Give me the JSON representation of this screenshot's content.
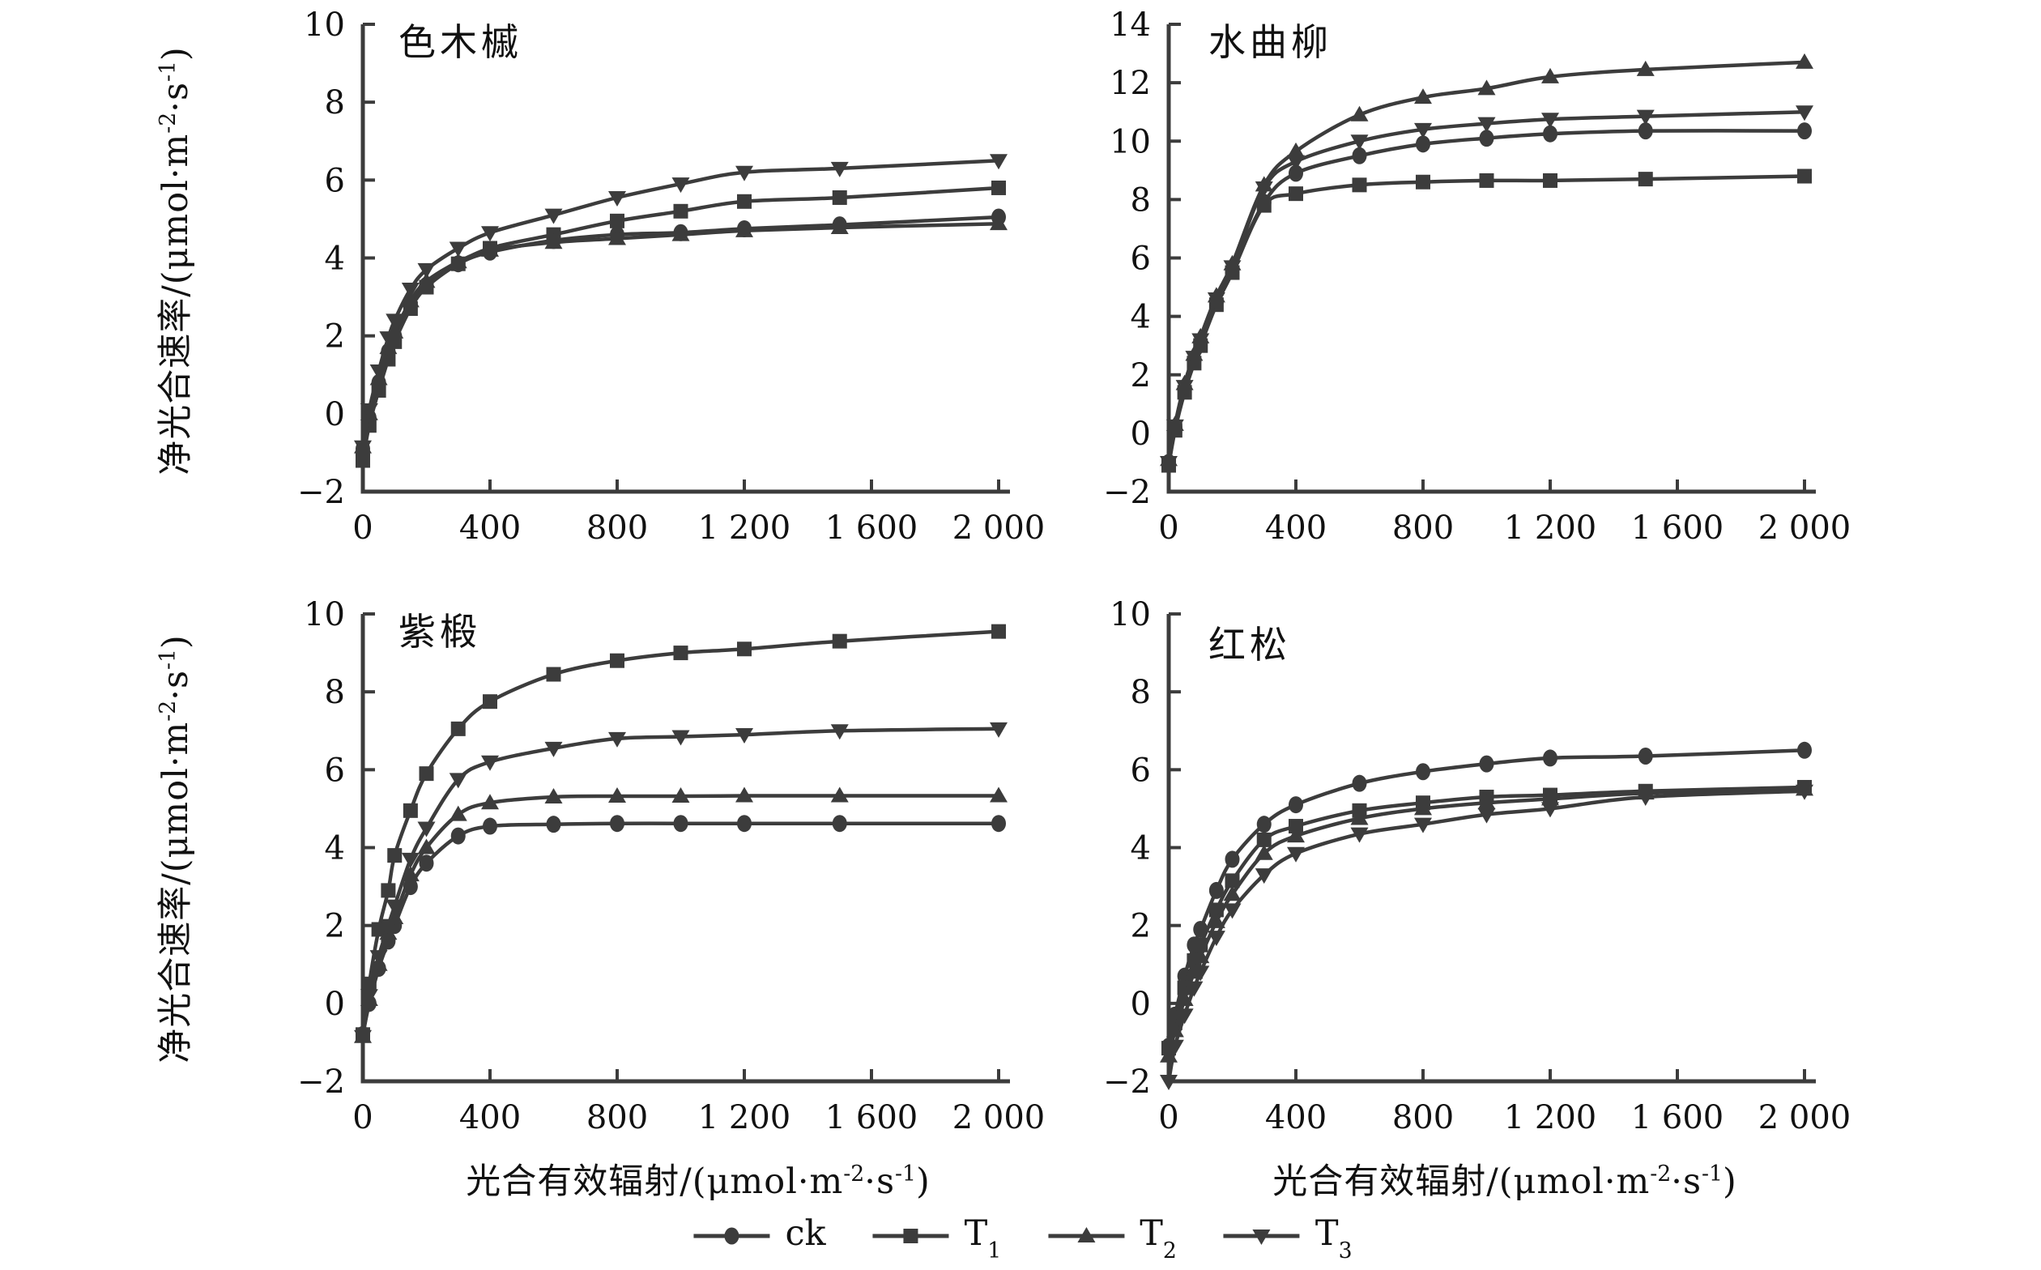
{
  "figure": {
    "background": "#ffffff",
    "line_color": "#3c3c3c",
    "text_color": "#111111"
  },
  "axes": {
    "x_label_pre": "光合有效辐射/(μmol·m",
    "x_label_sup1": "-2",
    "x_label_mid": "·s",
    "x_label_sup2": "-1",
    "x_label_post": ")",
    "y_label_pre": "净光合速率/(μmol·m",
    "y_label_sup1": "-2",
    "y_label_mid": "·s",
    "y_label_sup2": "-1",
    "y_label_post": ")"
  },
  "legend": {
    "items": [
      {
        "label": "ck",
        "sub": "",
        "marker": "circle"
      },
      {
        "label": "T",
        "sub": "1",
        "marker": "square"
      },
      {
        "label": "T",
        "sub": "2",
        "marker": "triangle-up"
      },
      {
        "label": "T",
        "sub": "3",
        "marker": "triangle-down"
      }
    ]
  },
  "chart_data": [
    {
      "type": "line",
      "title": "色木槭",
      "x": [
        0,
        20,
        50,
        80,
        100,
        150,
        200,
        300,
        400,
        600,
        800,
        1000,
        1200,
        1500,
        2000
      ],
      "xlim": [
        0,
        2000
      ],
      "xticks": [
        0,
        400,
        800,
        1200,
        1600,
        2000
      ],
      "xtick_labels": [
        "0",
        "400",
        "800",
        "1 200",
        "1 600",
        "2 000"
      ],
      "ylim": [
        -2,
        10
      ],
      "yticks": [
        -2,
        0,
        2,
        4,
        6,
        8,
        10
      ],
      "ytick_labels": [
        "−2",
        "0",
        "2",
        "4",
        "6",
        "8",
        "10"
      ],
      "series": [
        {
          "name": "ck",
          "marker": "circle",
          "values": [
            -0.9,
            -0.1,
            0.8,
            1.6,
            2.0,
            2.8,
            3.3,
            3.85,
            4.15,
            4.45,
            4.6,
            4.65,
            4.75,
            4.85,
            5.05
          ]
        },
        {
          "name": "T1",
          "marker": "square",
          "values": [
            -1.2,
            -0.3,
            0.6,
            1.4,
            1.85,
            2.7,
            3.25,
            3.85,
            4.25,
            4.6,
            4.95,
            5.2,
            5.45,
            5.55,
            5.8
          ]
        },
        {
          "name": "T2",
          "marker": "triangle-up",
          "values": [
            -0.85,
            0.0,
            0.9,
            1.7,
            2.1,
            2.9,
            3.4,
            3.9,
            4.2,
            4.4,
            4.5,
            4.6,
            4.7,
            4.78,
            4.88
          ]
        },
        {
          "name": "T3",
          "marker": "triangle-down",
          "values": [
            -0.85,
            0.1,
            1.1,
            1.95,
            2.4,
            3.2,
            3.7,
            4.25,
            4.65,
            5.1,
            5.55,
            5.9,
            6.2,
            6.3,
            6.5
          ]
        }
      ]
    },
    {
      "type": "line",
      "title": "水曲柳",
      "x": [
        0,
        20,
        50,
        80,
        100,
        150,
        200,
        300,
        400,
        600,
        800,
        1000,
        1200,
        1500,
        2000
      ],
      "xlim": [
        0,
        2000
      ],
      "xticks": [
        0,
        400,
        800,
        1200,
        1600,
        2000
      ],
      "xtick_labels": [
        "0",
        "400",
        "800",
        "1 200",
        "1 600",
        "2 000"
      ],
      "ylim": [
        -2,
        14
      ],
      "yticks": [
        -2,
        0,
        2,
        4,
        6,
        8,
        10,
        12,
        14
      ],
      "ytick_labels": [
        "−2",
        "0",
        "2",
        "4",
        "6",
        "8",
        "10",
        "12",
        "14"
      ],
      "series": [
        {
          "name": "ck",
          "marker": "circle",
          "values": [
            -1.0,
            0.2,
            1.5,
            2.5,
            3.1,
            4.5,
            5.6,
            7.9,
            8.9,
            9.5,
            9.9,
            10.1,
            10.25,
            10.35,
            10.35
          ]
        },
        {
          "name": "T1",
          "marker": "square",
          "values": [
            -1.1,
            0.1,
            1.4,
            2.4,
            3.0,
            4.4,
            5.5,
            7.8,
            8.2,
            8.5,
            8.6,
            8.65,
            8.65,
            8.7,
            8.8
          ]
        },
        {
          "name": "T2",
          "marker": "triangle-up",
          "values": [
            -0.9,
            0.3,
            1.7,
            2.7,
            3.3,
            4.7,
            5.8,
            8.5,
            9.65,
            10.9,
            11.5,
            11.8,
            12.2,
            12.45,
            12.7
          ]
        },
        {
          "name": "T3",
          "marker": "triangle-down",
          "values": [
            -1.0,
            0.25,
            1.6,
            2.6,
            3.2,
            4.6,
            5.7,
            8.4,
            9.3,
            10.0,
            10.4,
            10.6,
            10.75,
            10.85,
            11.0
          ]
        }
      ]
    },
    {
      "type": "line",
      "title": "紫椴",
      "x": [
        0,
        20,
        50,
        80,
        100,
        150,
        200,
        300,
        400,
        600,
        800,
        1000,
        1200,
        1500,
        2000
      ],
      "xlim": [
        0,
        2000
      ],
      "xticks": [
        0,
        400,
        800,
        1200,
        1600,
        2000
      ],
      "xtick_labels": [
        "0",
        "400",
        "800",
        "1 200",
        "1 600",
        "2 000"
      ],
      "ylim": [
        -2,
        10
      ],
      "yticks": [
        -2,
        0,
        2,
        4,
        6,
        8,
        10
      ],
      "ytick_labels": [
        "−2",
        "0",
        "2",
        "4",
        "6",
        "8",
        "10"
      ],
      "series": [
        {
          "name": "ck",
          "marker": "circle",
          "values": [
            -0.8,
            0.0,
            0.9,
            1.6,
            2.0,
            3.0,
            3.6,
            4.3,
            4.55,
            4.6,
            4.62,
            4.62,
            4.62,
            4.62,
            4.62
          ]
        },
        {
          "name": "T1",
          "marker": "square",
          "values": [
            -0.8,
            0.5,
            1.9,
            2.9,
            3.8,
            4.95,
            5.9,
            7.05,
            7.75,
            8.45,
            8.8,
            9.0,
            9.1,
            9.3,
            9.55
          ]
        },
        {
          "name": "T2",
          "marker": "triangle-up",
          "values": [
            -0.85,
            0.1,
            1.0,
            1.8,
            2.2,
            3.3,
            4.0,
            4.85,
            5.15,
            5.3,
            5.32,
            5.32,
            5.33,
            5.33,
            5.33
          ]
        },
        {
          "name": "T3",
          "marker": "triangle-down",
          "values": [
            -0.85,
            0.2,
            1.2,
            2.0,
            2.5,
            3.7,
            4.5,
            5.75,
            6.2,
            6.55,
            6.8,
            6.85,
            6.9,
            7.0,
            7.05
          ]
        }
      ]
    },
    {
      "type": "line",
      "title": "红松",
      "x": [
        0,
        20,
        50,
        80,
        100,
        150,
        200,
        300,
        400,
        600,
        800,
        1000,
        1200,
        1500,
        2000
      ],
      "xlim": [
        0,
        2000
      ],
      "xticks": [
        0,
        400,
        800,
        1200,
        1600,
        2000
      ],
      "xtick_labels": [
        "0",
        "400",
        "800",
        "1 200",
        "1 600",
        "2 000"
      ],
      "ylim": [
        -2,
        10
      ],
      "yticks": [
        -2,
        0,
        2,
        4,
        6,
        8,
        10
      ],
      "ytick_labels": [
        "−2",
        "0",
        "2",
        "4",
        "6",
        "8",
        "10"
      ],
      "series": [
        {
          "name": "ck",
          "marker": "circle",
          "values": [
            -1.1,
            -0.3,
            0.7,
            1.5,
            1.9,
            2.9,
            3.7,
            4.6,
            5.1,
            5.65,
            5.95,
            6.15,
            6.3,
            6.35,
            6.5
          ]
        },
        {
          "name": "T1",
          "marker": "square",
          "values": [
            -1.15,
            -0.5,
            0.4,
            1.1,
            1.5,
            2.4,
            3.15,
            4.2,
            4.55,
            4.95,
            5.15,
            5.3,
            5.35,
            5.45,
            5.55
          ]
        },
        {
          "name": "T2",
          "marker": "triangle-up",
          "values": [
            -1.35,
            -0.7,
            0.1,
            0.8,
            1.2,
            2.1,
            2.8,
            3.85,
            4.3,
            4.75,
            5.0,
            5.15,
            5.25,
            5.4,
            5.5
          ]
        },
        {
          "name": "T3",
          "marker": "triangle-down",
          "values": [
            -2.0,
            -1.1,
            -0.3,
            0.4,
            0.8,
            1.7,
            2.4,
            3.3,
            3.85,
            4.35,
            4.6,
            4.85,
            5.0,
            5.3,
            5.45
          ]
        }
      ]
    }
  ]
}
